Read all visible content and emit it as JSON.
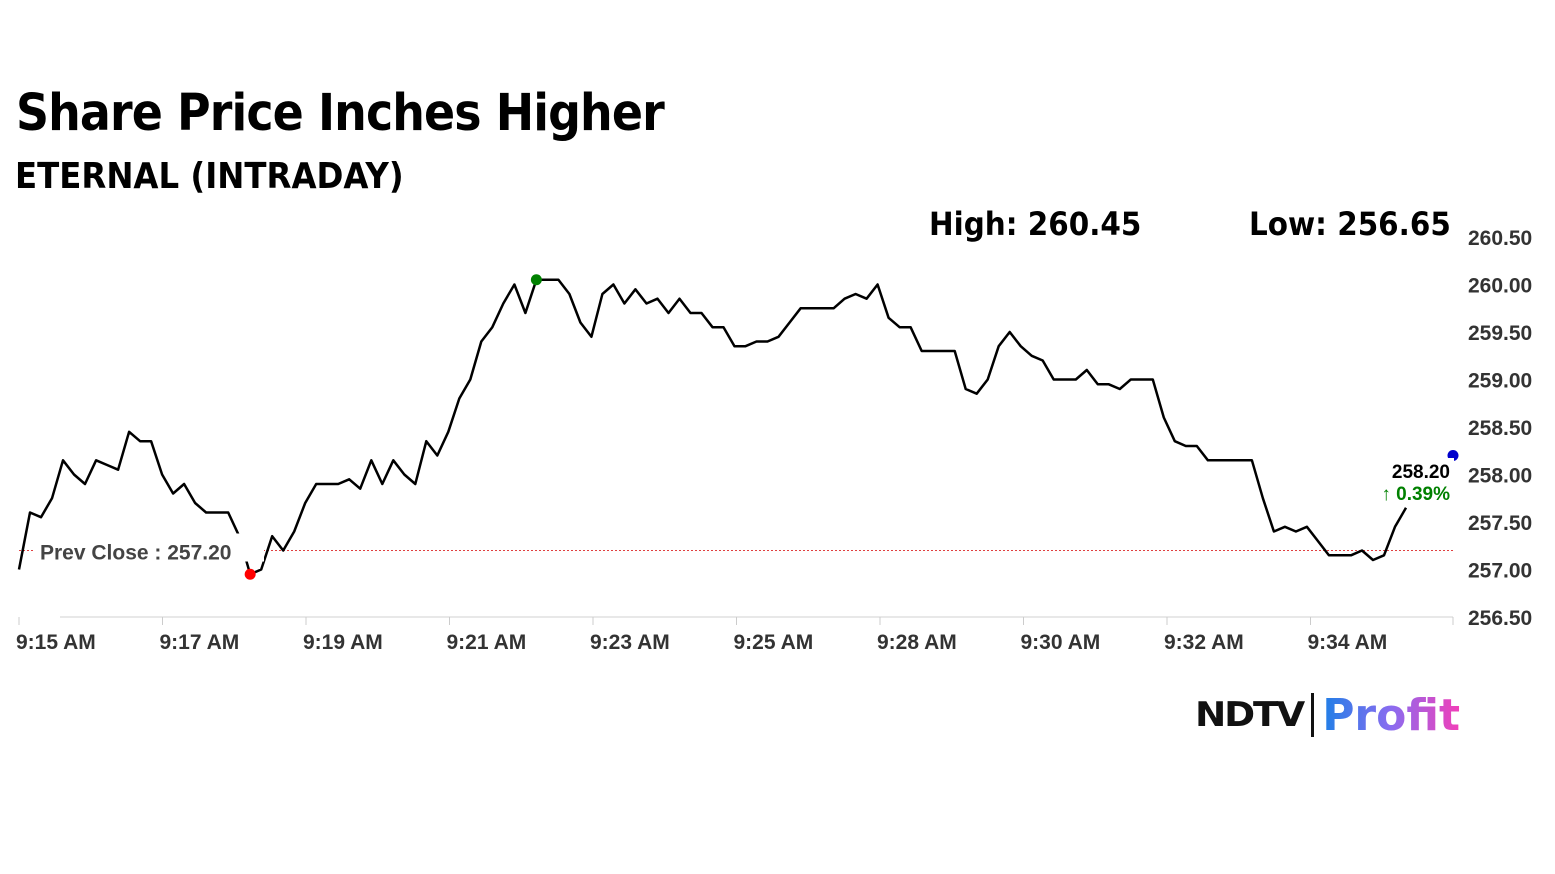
{
  "header": {
    "title": "Share Price Inches Higher",
    "subtitle": "ETERNAL (INTRADAY)"
  },
  "stats": {
    "high": "High: 260.45",
    "low": "Low: 256.65"
  },
  "last": {
    "price": "258.20",
    "change": "↑ 0.39%"
  },
  "brand": {
    "ndtv": "NDTV",
    "profit": "Profit"
  },
  "colors": {
    "line": "#000000",
    "up": "#008000",
    "high_marker": "#008000",
    "low_marker": "#ff0000",
    "last_marker": "#0000cc",
    "prev_close_line": "#e04040"
  },
  "chart_data": {
    "type": "line",
    "title": "Share Price Inches Higher",
    "subtitle": "ETERNAL (INTRADAY)",
    "prev_close": 257.2,
    "prev_close_label": "Prev Close : 257.20",
    "ylim": [
      256.5,
      260.5
    ],
    "y_ticks": [
      "260.50",
      "260.00",
      "259.50",
      "259.00",
      "258.50",
      "258.00",
      "257.50",
      "257.00",
      "256.50"
    ],
    "y_tick_values": [
      260.5,
      260.0,
      259.5,
      259.0,
      258.5,
      258.0,
      257.5,
      257.0,
      256.5
    ],
    "x_ticks": [
      "9:15 AM",
      "9:17 AM",
      "9:19 AM",
      "9:21 AM",
      "9:23 AM",
      "9:25 AM",
      "9:28 AM",
      "9:30 AM",
      "9:32 AM",
      "9:34 AM"
    ],
    "grid": false,
    "values": [
      257.0,
      257.6,
      257.55,
      257.75,
      258.15,
      258.0,
      257.9,
      258.15,
      258.1,
      258.05,
      258.45,
      258.35,
      258.35,
      258.0,
      257.8,
      257.9,
      257.7,
      257.6,
      257.6,
      257.6,
      257.35,
      256.95,
      257.0,
      257.35,
      257.2,
      257.4,
      257.7,
      257.9,
      257.9,
      257.9,
      257.95,
      257.85,
      258.15,
      257.9,
      258.15,
      258.0,
      257.9,
      258.35,
      258.2,
      258.45,
      258.8,
      259.0,
      259.4,
      259.55,
      259.8,
      260.0,
      259.7,
      260.05,
      260.05,
      260.05,
      259.9,
      259.6,
      259.45,
      259.9,
      260.0,
      259.8,
      259.95,
      259.8,
      259.85,
      259.7,
      259.85,
      259.7,
      259.7,
      259.55,
      259.55,
      259.35,
      259.35,
      259.4,
      259.4,
      259.45,
      259.6,
      259.75,
      259.75,
      259.75,
      259.75,
      259.85,
      259.9,
      259.85,
      260.0,
      259.65,
      259.55,
      259.55,
      259.3,
      259.3,
      259.3,
      259.3,
      258.9,
      258.85,
      259.0,
      259.35,
      259.5,
      259.35,
      259.25,
      259.2,
      259.0,
      259.0,
      259.0,
      259.1,
      258.95,
      258.95,
      258.9,
      259.0,
      259.0,
      259.0,
      258.6,
      258.35,
      258.3,
      258.3,
      258.15,
      258.15,
      258.15,
      258.15,
      258.15,
      257.75,
      257.4,
      257.45,
      257.4,
      257.45,
      257.3,
      257.15,
      257.15,
      257.15,
      257.2,
      257.1,
      257.15,
      257.45,
      257.65
    ],
    "last_value": 258.2
  }
}
